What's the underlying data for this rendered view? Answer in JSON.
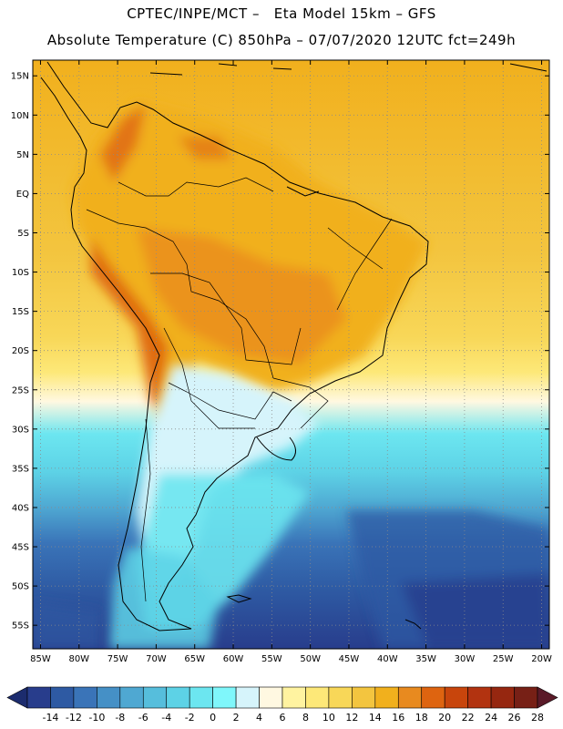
{
  "header": {
    "line1": "CPTEC/INPE/MCT –   Eta Model 15km – GFS",
    "line2": "Absolute Temperature (C) 850hPa – 07/07/2020 12UTC fct=249h"
  },
  "axes": {
    "lat_labels": [
      "15N",
      "10N",
      "5N",
      "EQ",
      "5S",
      "10S",
      "15S",
      "20S",
      "25S",
      "30S",
      "35S",
      "40S",
      "45S",
      "50S",
      "55S"
    ],
    "lat_values": [
      15,
      10,
      5,
      0,
      -5,
      -10,
      -15,
      -20,
      -25,
      -30,
      -35,
      -40,
      -45,
      -50,
      -55
    ],
    "lon_labels": [
      "85W",
      "80W",
      "75W",
      "70W",
      "65W",
      "60W",
      "55W",
      "50W",
      "45W",
      "40W",
      "35W",
      "30W",
      "25W",
      "20W"
    ],
    "lon_values": [
      -85,
      -80,
      -75,
      -70,
      -65,
      -60,
      -55,
      -50,
      -45,
      -40,
      -35,
      -30,
      -25,
      -20
    ],
    "lat_range": [
      -58,
      17
    ],
    "lon_range": [
      -86,
      -19
    ]
  },
  "colorbar": {
    "ticks": [
      "-14",
      "-12",
      "-10",
      "-8",
      "-6",
      "-4",
      "-2",
      "0",
      "2",
      "4",
      "6",
      "8",
      "10",
      "12",
      "14",
      "16",
      "18",
      "20",
      "22",
      "24",
      "26",
      "28"
    ],
    "colors": [
      "#283d8c",
      "#2e5aa3",
      "#3a74b8",
      "#4590c6",
      "#4fa8d2",
      "#56bedc",
      "#5dd2e6",
      "#6ce6f0",
      "#7ff7fb",
      "#d6f4fb",
      "#fff8e1",
      "#fff3a0",
      "#fde878",
      "#f8d758",
      "#f3c53f",
      "#f1b01d",
      "#e88a1f",
      "#de6410",
      "#c8450c",
      "#b23310",
      "#962710",
      "#772016"
    ]
  },
  "chart_data": {
    "type": "heatmap",
    "title": "Absolute Temperature (C) 850hPa",
    "subtitle": "CPTEC/INPE/MCT - Eta Model 15km - GFS, 07/07/2020 12UTC fct=249h",
    "variable": "temperature at 850 hPa",
    "units": "C",
    "x_axis": "longitude (85W to 20W)",
    "y_axis": "latitude (15N to 55S)",
    "colorbar_range": [
      -14,
      28
    ],
    "colorbar_step": 2,
    "regions": [
      {
        "area": "northern South America, Amazon basin",
        "value_range": [
          18,
          22
        ]
      },
      {
        "area": "central Brazil / Bolivia / Paraguay",
        "value_range": [
          20,
          22
        ]
      },
      {
        "area": "Andes eastern flank (Peru, Bolivia, N Argentina)",
        "value_range": [
          22,
          24
        ]
      },
      {
        "area": "tropical Atlantic ocean",
        "value_range": [
          16,
          20
        ]
      },
      {
        "area": "southern Brazil / Uruguay coast",
        "value_range": [
          6,
          10
        ]
      },
      {
        "area": "central Argentina",
        "value_range": [
          2,
          6
        ]
      },
      {
        "area": "Patagonia",
        "value_range": [
          -2,
          2
        ]
      },
      {
        "area": "South Atlantic 35S-45S",
        "value_range": [
          -4,
          2
        ]
      },
      {
        "area": "Southern ocean south of 48S",
        "value_range": [
          -12,
          -6
        ]
      }
    ]
  }
}
